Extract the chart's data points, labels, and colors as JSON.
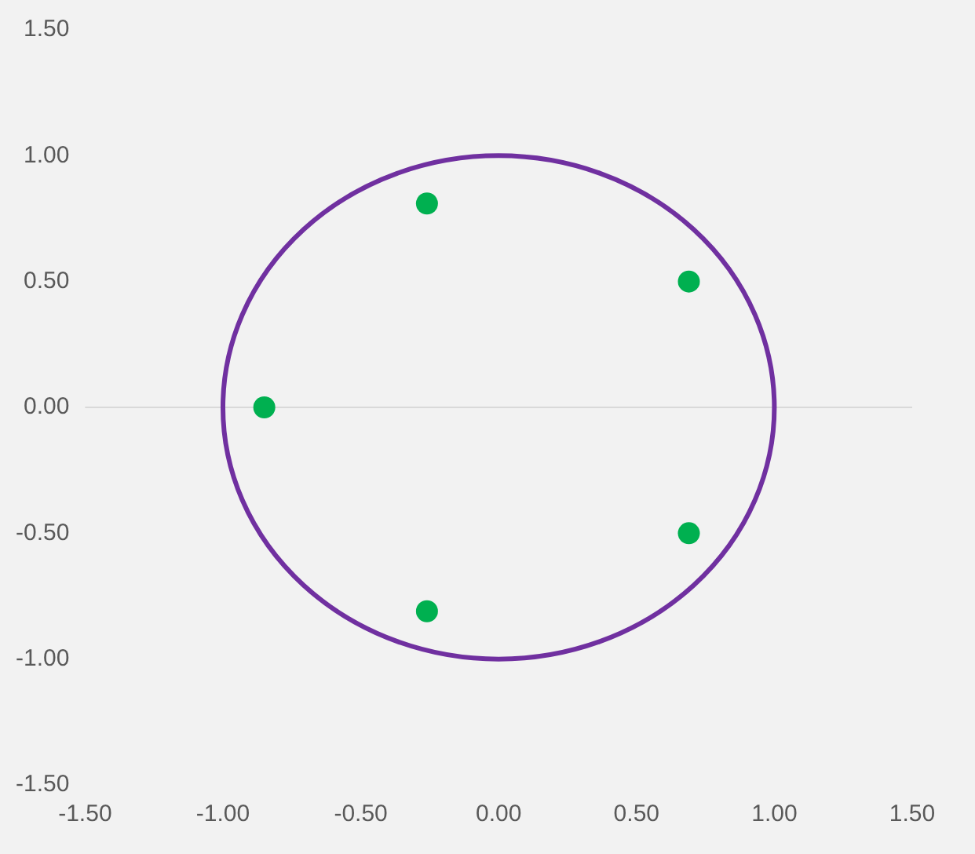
{
  "chart_data": {
    "type": "scatter",
    "xlim": [
      -1.5,
      1.5
    ],
    "ylim": [
      -1.5,
      1.5
    ],
    "xticks": [
      {
        "value": -1.5,
        "label": "-1.50"
      },
      {
        "value": -1,
        "label": "-1.00"
      },
      {
        "value": -0.5,
        "label": "-0.50"
      },
      {
        "value": 0,
        "label": "0.00"
      },
      {
        "value": 0.5,
        "label": "0.50"
      },
      {
        "value": 1,
        "label": "1.00"
      },
      {
        "value": 1.5,
        "label": "1.50"
      }
    ],
    "yticks": [
      {
        "value": -1.5,
        "label": "-1.50"
      },
      {
        "value": -1,
        "label": "-1.00"
      },
      {
        "value": -0.5,
        "label": "-0.50"
      },
      {
        "value": 0,
        "label": "0.00"
      },
      {
        "value": 0.5,
        "label": "0.50"
      },
      {
        "value": 1,
        "label": "1.00"
      },
      {
        "value": 1.5,
        "label": "1.50"
      }
    ],
    "grid": false,
    "legend": false,
    "ref_lines": [
      {
        "axis": "y",
        "value": 0,
        "color": "#d9d9d9"
      }
    ],
    "series": [
      {
        "type": "scatter",
        "color": "#00b050",
        "marker": "circle",
        "x": [
          -0.85,
          -0.26,
          0.69,
          0.69,
          -0.26
        ],
        "values": [
          0,
          0.81,
          0.5,
          -0.5,
          -0.81
        ]
      }
    ]
  }
}
